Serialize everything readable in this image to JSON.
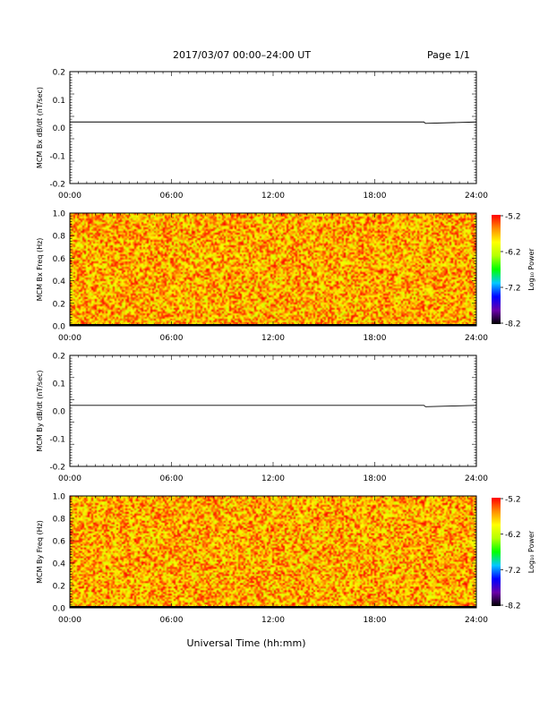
{
  "header": {
    "title": "2017/03/07  00:00–24:00 UT",
    "page": "Page 1/1"
  },
  "footer": {
    "xlabel": "Universal Time (hh:mm)"
  },
  "colors": {
    "frame": "#000000",
    "trace": "#000000",
    "colorbar_stops": [
      "#000000",
      "#6a00a8",
      "#0000ff",
      "#00c8ff",
      "#00ff00",
      "#b4ff00",
      "#ffff00",
      "#ff8c00",
      "#ff0000"
    ]
  },
  "chart_data": [
    {
      "type": "line",
      "ylabel": "MCM Bx dB/dt (nT/sec)",
      "xticks": [
        "00:00",
        "06:00",
        "12:00",
        "18:00",
        "24:00"
      ],
      "yticks": [
        "0.2",
        "0.1",
        "0.0",
        "-0.1",
        "-0.2"
      ],
      "xlim": [
        0,
        24
      ],
      "ylim": [
        -0.2,
        0.2
      ],
      "series": [
        {
          "x": [
            0,
            20.9,
            21.0,
            24
          ],
          "y": [
            0.02,
            0.02,
            0.015,
            0.02
          ]
        }
      ]
    },
    {
      "type": "heatmap",
      "ylabel": "MCM Bx Freq (Hz)",
      "xticks": [
        "00:00",
        "06:00",
        "12:00",
        "18:00",
        "24:00"
      ],
      "yticks": [
        "1.0",
        "0.8",
        "0.6",
        "0.4",
        "0.2",
        "0.0"
      ],
      "xlim": [
        0,
        24
      ],
      "ylim": [
        0,
        1.0
      ],
      "zlim": [
        -8.2,
        -5.2
      ],
      "colorbar_label": "Log₁₀ Power",
      "colorbar_ticks": [
        "-5.2",
        "-6.2",
        "-7.2",
        "-8.2"
      ],
      "description_values": {
        "typical": -5.7,
        "spread": 0.5
      }
    },
    {
      "type": "line",
      "ylabel": "MCM By dB/dt (nT/sec)",
      "xticks": [
        "00:00",
        "06:00",
        "12:00",
        "18:00",
        "24:00"
      ],
      "yticks": [
        "0.2",
        "0.1",
        "0.0",
        "-0.1",
        "-0.2"
      ],
      "xlim": [
        0,
        24
      ],
      "ylim": [
        -0.2,
        0.2
      ],
      "series": [
        {
          "x": [
            0,
            20.9,
            21.0,
            24
          ],
          "y": [
            0.02,
            0.02,
            0.015,
            0.02
          ]
        }
      ]
    },
    {
      "type": "heatmap",
      "ylabel": "MCM By Freq (Hz)",
      "xticks": [
        "00:00",
        "06:00",
        "12:00",
        "18:00",
        "24:00"
      ],
      "yticks": [
        "1.0",
        "0.8",
        "0.6",
        "0.4",
        "0.2",
        "0.0"
      ],
      "xlim": [
        0,
        24
      ],
      "ylim": [
        0,
        1.0
      ],
      "zlim": [
        -8.2,
        -5.2
      ],
      "colorbar_label": "Log₁₀ Power",
      "colorbar_ticks": [
        "-5.2",
        "-6.2",
        "-7.2",
        "-8.2"
      ],
      "description_values": {
        "typical": -5.7,
        "spread": 0.5
      }
    }
  ]
}
